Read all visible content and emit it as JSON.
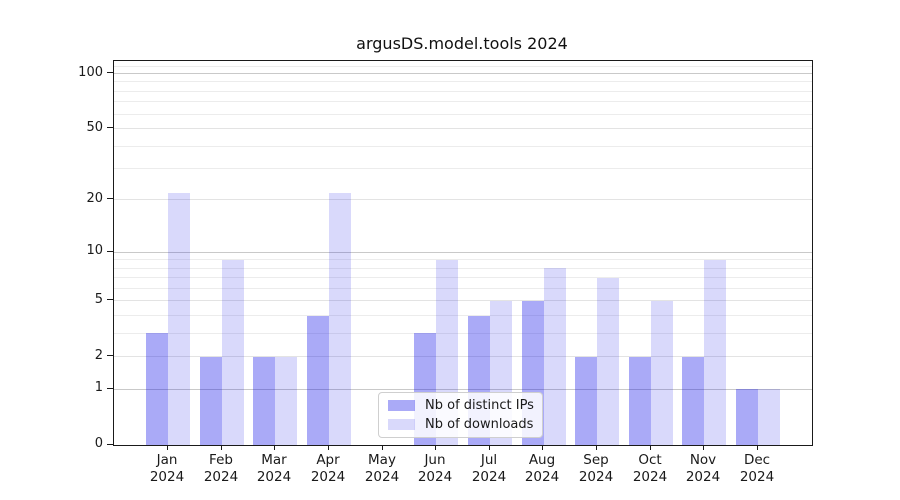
{
  "chart_data": {
    "type": "bar",
    "title": "argusDS.model.tools 2024",
    "categories": [
      "Jan 2024",
      "Feb 2024",
      "Mar 2024",
      "Apr 2024",
      "May 2024",
      "Jun 2024",
      "Jul 2024",
      "Aug 2024",
      "Sep 2024",
      "Oct 2024",
      "Nov 2024",
      "Dec 2024"
    ],
    "series": [
      {
        "name": "Nb of distinct IPs",
        "values": [
          3,
          2,
          2,
          4,
          0,
          3,
          4,
          5,
          2,
          2,
          2,
          1
        ],
        "color": "rgba(20,20,232,0.36)"
      },
      {
        "name": "Nb of downloads",
        "values": [
          22,
          9,
          2,
          22,
          0,
          9,
          5,
          8,
          7,
          5,
          9,
          1
        ],
        "color": "rgba(20,20,232,0.16)"
      }
    ],
    "ylabel": "",
    "xlabel": "",
    "yscale": "log10(1+v)",
    "ylim": [
      0,
      118
    ],
    "yticks": [
      0,
      1,
      2,
      5,
      10,
      20,
      50,
      100
    ],
    "grid": true,
    "gridlines_major": [
      1,
      10,
      100
    ],
    "gridlines_mid": [
      2,
      5,
      20,
      50
    ],
    "gridlines_minor": [
      3,
      4,
      6,
      7,
      8,
      9,
      30,
      40,
      60,
      70,
      80,
      90,
      110
    ],
    "legend_position": "lower center"
  },
  "colors": {
    "spine": "#1a1a1a",
    "grid_major": "#c9c9c9",
    "grid_mid": "#e3e3e3",
    "grid_minor": "#ececec",
    "legend_border": "#cfcfcf"
  }
}
